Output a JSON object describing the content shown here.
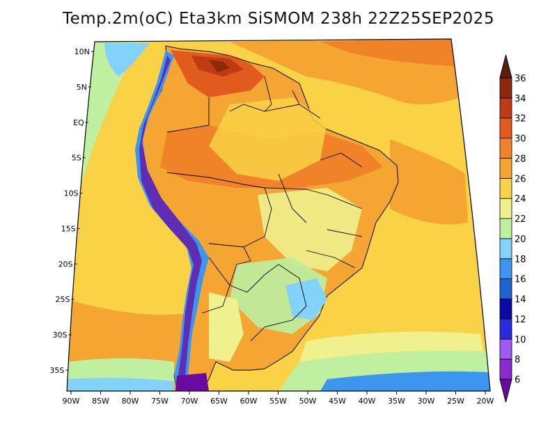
{
  "title": "Temp.2m(oC) Eta3km SiSMOM 238h 22Z25SEP2025",
  "map": {
    "lat_ticks": [
      "10N",
      "5N",
      "EQ",
      "5S",
      "10S",
      "15S",
      "20S",
      "25S",
      "30S",
      "35S"
    ],
    "lat_values": [
      10,
      5,
      0,
      -5,
      -10,
      -15,
      -20,
      -25,
      -30,
      -35
    ],
    "lon_ticks": [
      "90W",
      "85W",
      "80W",
      "75W",
      "70W",
      "65W",
      "60W",
      "55W",
      "50W",
      "45W",
      "40W",
      "35W",
      "30W",
      "25W",
      "20W"
    ],
    "lon_values": [
      -90,
      -85,
      -80,
      -75,
      -70,
      -65,
      -60,
      -55,
      -50,
      -45,
      -40,
      -35,
      -30,
      -25,
      -20
    ],
    "lat_range": [
      -38,
      12
    ],
    "lon_range": [
      -91,
      -20
    ]
  },
  "colorbar": {
    "labels": [
      "6",
      "8",
      "10",
      "12",
      "14",
      "16",
      "18",
      "20",
      "22",
      "24",
      "26",
      "28",
      "30",
      "32",
      "34",
      "36"
    ],
    "levels": [
      6,
      8,
      10,
      12,
      14,
      16,
      18,
      20,
      22,
      24,
      26,
      28,
      30,
      32,
      34,
      36
    ],
    "colors": [
      "#6a0aa0",
      "#8a2ad0",
      "#a05af0",
      "#2a2ae0",
      "#0a0aa8",
      "#1e64d2",
      "#3c96f0",
      "#82d2fa",
      "#bef0a0",
      "#f0f08c",
      "#fad246",
      "#f5a532",
      "#f08228",
      "#e15a1e",
      "#be3c14",
      "#8c2a0a",
      "#5a1e0a"
    ],
    "unit": "oC"
  },
  "colors": {
    "ocean_warm": "#f5a532",
    "ocean_mild": "#fad246",
    "ocean_cool": "#bef0a0",
    "land_hot": "#e15a1e",
    "highland_cold": "#1e64d2",
    "outline": "#000000"
  }
}
